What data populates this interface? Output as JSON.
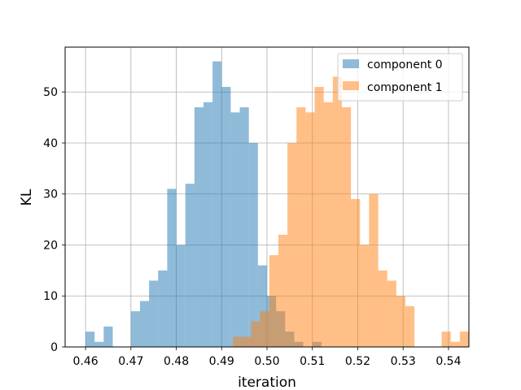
{
  "chart_data": {
    "type": "bar",
    "title": "",
    "xlabel": "iteration",
    "ylabel": "KL",
    "xlim": [
      0.4555,
      0.5445
    ],
    "ylim": [
      0,
      58.8
    ],
    "xticks": [
      0.46,
      0.47,
      0.48,
      0.49,
      0.5,
      0.51,
      0.52,
      0.53,
      0.54
    ],
    "xtick_labels": [
      "0.46",
      "0.47",
      "0.48",
      "0.49",
      "0.50",
      "0.51",
      "0.52",
      "0.53",
      "0.54"
    ],
    "yticks": [
      0,
      10,
      20,
      30,
      40,
      50
    ],
    "ytick_labels": [
      "0",
      "10",
      "20",
      "30",
      "40",
      "50"
    ],
    "grid": true,
    "legend": {
      "position": "top-right"
    },
    "series": [
      {
        "name": "component 0",
        "color": "#1f77b4",
        "opacity": 0.5,
        "bin_start": 0.46,
        "bin_width": 0.002,
        "values": [
          3,
          1,
          4,
          0,
          0,
          7,
          9,
          13,
          15,
          31,
          20,
          32,
          47,
          48,
          56,
          51,
          46,
          47,
          40,
          16,
          10,
          7,
          3,
          1,
          0,
          1
        ]
      },
      {
        "name": "component 1",
        "color": "#ff7f0e",
        "opacity": 0.5,
        "bin_start": 0.4925,
        "bin_width": 0.002,
        "values": [
          2,
          2,
          5,
          7,
          18,
          22,
          40,
          47,
          46,
          51,
          48,
          53,
          47,
          29,
          20,
          30,
          15,
          13,
          10,
          8,
          0,
          0,
          0,
          3,
          1,
          3
        ]
      }
    ]
  }
}
